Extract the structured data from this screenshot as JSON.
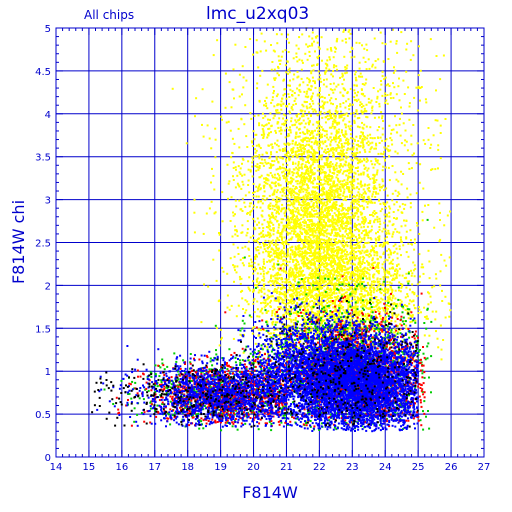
{
  "chart_data": {
    "type": "scatter",
    "title": "lmc_u2xq03",
    "subtitle": "All chips",
    "xlabel": "F814W",
    "ylabel": "F814W chi",
    "xlim": [
      14,
      27
    ],
    "ylim": [
      0,
      5
    ],
    "xticks": [
      14,
      15,
      16,
      17,
      18,
      19,
      20,
      21,
      22,
      23,
      24,
      25,
      26,
      27
    ],
    "yticks": [
      0,
      0.5,
      1,
      1.5,
      2,
      2.5,
      3,
      3.5,
      4,
      4.5,
      5
    ],
    "xtick_labels": [
      "14",
      "15",
      "16",
      "17",
      "18",
      "19",
      "20",
      "21",
      "22",
      "23",
      "24",
      "25",
      "26",
      "27"
    ],
    "ytick_labels": [
      "0",
      "0.5",
      "1",
      "1.5",
      "2",
      "2.5",
      "3",
      "3.5",
      "4",
      "4.5",
      "5"
    ],
    "grid": true,
    "series": [
      {
        "color": "#ffff00",
        "n": 6500,
        "clusters": [
          {
            "w": 0.52,
            "mx": 21.9,
            "sx": 1.05,
            "my": 2.7,
            "sy": 0.75,
            "xmin": 17,
            "xmax": 26,
            "ymin": 0.9,
            "ymax": 5
          },
          {
            "w": 0.28,
            "mx": 22.6,
            "sx": 1.3,
            "my": 1.9,
            "sy": 0.45,
            "xmin": 17,
            "xmax": 26,
            "ymin": 0.8,
            "ymax": 5
          },
          {
            "w": 0.2,
            "mx": 22.3,
            "sx": 1.6,
            "my": 3.6,
            "sy": 0.9,
            "xmin": 17.5,
            "xmax": 26,
            "ymin": 1.0,
            "ymax": 5
          }
        ]
      },
      {
        "color": "#00cc00",
        "n": 1700,
        "clusters": [
          {
            "w": 0.7,
            "mx": 22.8,
            "sx": 1.3,
            "my": 1.05,
            "sy": 0.4,
            "xmin": 16.5,
            "xmax": 25.4,
            "ymin": 0.3,
            "ymax": 2.8
          },
          {
            "w": 0.3,
            "mx": 19.0,
            "sx": 1.2,
            "my": 0.75,
            "sy": 0.2,
            "xmin": 15,
            "xmax": 21,
            "ymin": 0.3,
            "ymax": 1.6
          }
        ]
      },
      {
        "color": "#ff0000",
        "n": 2200,
        "clusters": [
          {
            "w": 0.6,
            "mx": 23.2,
            "sx": 1.2,
            "my": 0.95,
            "sy": 0.35,
            "xmin": 17,
            "xmax": 25.2,
            "ymin": 0.35,
            "ymax": 2.6
          },
          {
            "w": 0.4,
            "mx": 19.2,
            "sx": 1.2,
            "my": 0.72,
            "sy": 0.18,
            "xmin": 15,
            "xmax": 21,
            "ymin": 0.35,
            "ymax": 1.5
          }
        ]
      },
      {
        "color": "#0000ff",
        "n": 7000,
        "clusters": [
          {
            "w": 0.55,
            "mx": 23.3,
            "sx": 1.0,
            "my": 0.85,
            "sy": 0.28,
            "xmin": 20,
            "xmax": 25.0,
            "ymin": 0.3,
            "ymax": 2.0
          },
          {
            "w": 0.25,
            "mx": 21.8,
            "sx": 1.0,
            "my": 1.0,
            "sy": 0.3,
            "xmin": 19.5,
            "xmax": 25,
            "ymin": 0.35,
            "ymax": 2.1
          },
          {
            "w": 0.2,
            "mx": 19.0,
            "sx": 1.2,
            "my": 0.72,
            "sy": 0.18,
            "xmin": 15,
            "xmax": 21,
            "ymin": 0.35,
            "ymax": 1.5
          }
        ]
      },
      {
        "color": "#000000",
        "n": 700,
        "clusters": [
          {
            "w": 0.6,
            "mx": 23.0,
            "sx": 1.4,
            "my": 0.95,
            "sy": 0.35,
            "xmin": 16,
            "xmax": 25,
            "ymin": 0.35,
            "ymax": 2.4
          },
          {
            "w": 0.4,
            "mx": 18.0,
            "sx": 1.5,
            "my": 0.7,
            "sy": 0.18,
            "xmin": 15,
            "xmax": 21,
            "ymin": 0.35,
            "ymax": 1.3
          }
        ]
      }
    ]
  }
}
